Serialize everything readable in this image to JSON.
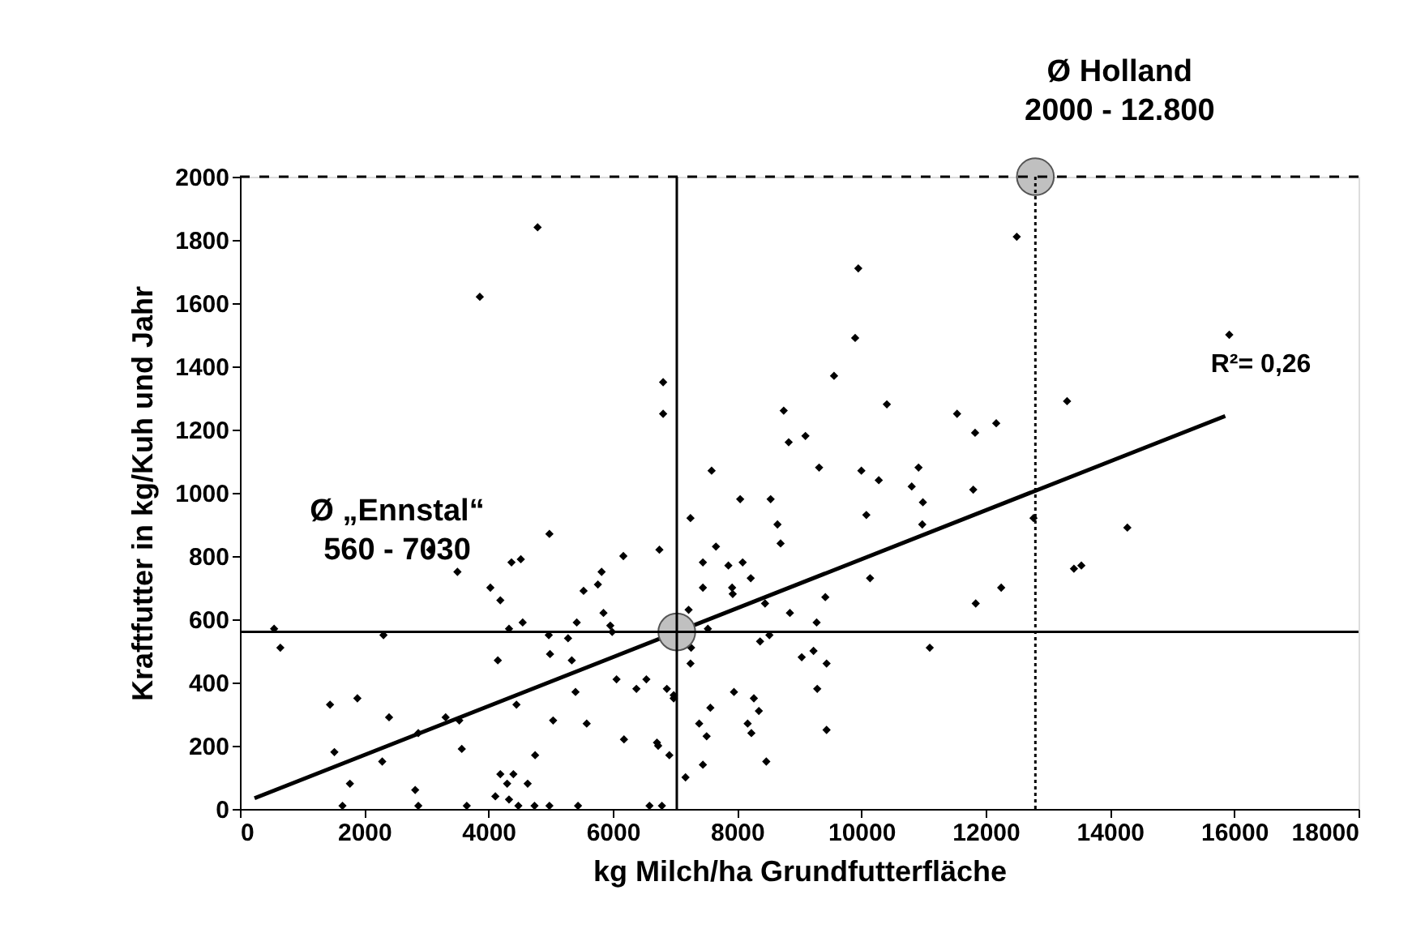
{
  "chart_data": {
    "type": "scatter",
    "xlabel": "kg Milch/ha Grundfutterfläche",
    "ylabel": "Kraftfutter in kg/Kuh und Jahr",
    "xlim": [
      0,
      18000
    ],
    "ylim": [
      0,
      2000
    ],
    "xticks": [
      0,
      2000,
      4000,
      6000,
      8000,
      10000,
      12000,
      14000,
      16000,
      18000
    ],
    "yticks": [
      0,
      200,
      400,
      600,
      800,
      1000,
      1200,
      1400,
      1600,
      1800,
      2000
    ],
    "grid": false,
    "series": [
      {
        "marker": "diamond",
        "color": "#000000",
        "x": [
          4790,
          3860,
          6810,
          6810,
          8750,
          8830,
          9100,
          12500,
          9950,
          9900,
          9560,
          15920,
          13310,
          10410,
          11540,
          12170,
          11830,
          9320,
          10000,
          10920,
          10280,
          10810,
          11800,
          10990,
          10080,
          10980,
          12770,
          14280,
          8650,
          8700,
          13420,
          13540,
          10140,
          12250,
          11840,
          9420,
          8850,
          9280,
          11100,
          9040,
          9230,
          9440,
          9290,
          9440,
          7590,
          8050,
          8540,
          7250,
          4980,
          3060,
          7660,
          6750,
          6170,
          4370,
          4520,
          3500,
          7450,
          7860,
          8090,
          5820,
          8220,
          5760,
          5530,
          4030,
          4190,
          7450,
          7920,
          7930,
          8450,
          5850,
          7220,
          5960,
          5990,
          5420,
          4550,
          4330,
          7530,
          550,
          650,
          2310,
          4970,
          5280,
          8520,
          8370,
          7260,
          4990,
          4150,
          5340,
          7250,
          6060,
          6540,
          6380,
          6870,
          6980,
          6980,
          5400,
          7950,
          8270,
          8350,
          8170,
          8230,
          7570,
          7390,
          7510,
          4450,
          1450,
          1890,
          2400,
          3310,
          3530,
          2870,
          5040,
          5580,
          6180,
          6710,
          6730,
          1520,
          2290,
          3570,
          4750,
          6910,
          8470,
          7450,
          7170,
          1770,
          2820,
          4190,
          4400,
          4300,
          4630,
          4110,
          4330,
          1650,
          2870,
          3650,
          4480,
          4740,
          4980,
          5440,
          6590,
          6790
        ],
        "values": [
          1840,
          1620,
          1350,
          1250,
          1260,
          1160,
          1180,
          1810,
          1710,
          1490,
          1370,
          1500,
          1290,
          1280,
          1250,
          1220,
          1190,
          1080,
          1070,
          1080,
          1040,
          1020,
          1010,
          970,
          930,
          900,
          920,
          890,
          900,
          840,
          760,
          770,
          730,
          700,
          650,
          670,
          620,
          590,
          510,
          480,
          500,
          460,
          380,
          250,
          1070,
          980,
          980,
          920,
          870,
          820,
          830,
          820,
          800,
          780,
          790,
          750,
          780,
          770,
          780,
          750,
          730,
          710,
          690,
          700,
          660,
          700,
          700,
          680,
          650,
          620,
          630,
          580,
          560,
          590,
          590,
          570,
          570,
          570,
          510,
          550,
          550,
          540,
          550,
          530,
          510,
          490,
          470,
          470,
          460,
          410,
          410,
          380,
          380,
          360,
          350,
          370,
          370,
          350,
          310,
          270,
          240,
          320,
          270,
          230,
          330,
          330,
          350,
          290,
          290,
          280,
          240,
          280,
          270,
          220,
          210,
          200,
          180,
          150,
          190,
          170,
          170,
          150,
          140,
          100,
          80,
          60,
          110,
          110,
          80,
          80,
          40,
          30,
          10,
          10,
          10,
          10,
          10,
          10,
          10,
          10,
          10
        ]
      },
      {
        "type": "line",
        "color": "#000000",
        "x": [
          235,
          15855
        ],
        "values": [
          34,
          1243
        ]
      },
      {
        "type": "scatter",
        "marker": "circle",
        "color": "#c0c0c0",
        "x": [
          7030,
          12800
        ],
        "values": [
          560,
          2000
        ]
      }
    ],
    "ref_lines": [
      {
        "axis": "y",
        "value": 560,
        "line_style": "solid",
        "color": "#000000"
      },
      {
        "axis": "x",
        "value": 7030,
        "line_style": "solid",
        "color": "#000000"
      },
      {
        "axis": "y",
        "value": 2000,
        "line_style": "dashed",
        "color": "#000000"
      },
      {
        "axis": "x",
        "value": 12800,
        "line_style": "dotted",
        "color": "#000000"
      }
    ],
    "annotations": [
      "Ø „Ennstal“\n560 - 7030",
      {
        "text": "Ø Holland\n2000 - 12.800",
        "x": 12800,
        "y": 2000
      },
      {
        "text": "R²= 0,26",
        "x": 15855,
        "y": 1243
      }
    ]
  }
}
